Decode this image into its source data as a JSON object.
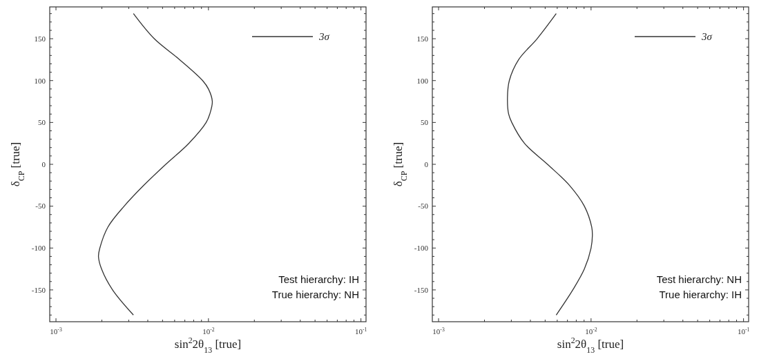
{
  "chart_data": [
    {
      "type": "line",
      "xlabel": "sin$^{2}$2θ$_{13}$ [true]",
      "ylabel": "δ$_{CP}$ [true]",
      "log": "x",
      "legend": "top right",
      "xlim": [
        0.00091,
        0.108
      ],
      "ylim": [
        -188,
        188
      ],
      "xticks": [
        {
          "value": 0.001,
          "label": "10$^{-3}$"
        },
        {
          "value": 0.002,
          "label": null
        },
        {
          "value": 0.003,
          "label": null
        },
        {
          "value": 0.004,
          "label": null
        },
        {
          "value": 0.005,
          "label": null
        },
        {
          "value": 0.006,
          "label": null
        },
        {
          "value": 0.007,
          "label": null
        },
        {
          "value": 0.008,
          "label": null
        },
        {
          "value": 0.009,
          "label": null
        },
        {
          "value": 0.01,
          "label": "10$^{-2}$"
        },
        {
          "value": 0.02,
          "label": null
        },
        {
          "value": 0.03,
          "label": null
        },
        {
          "value": 0.04,
          "label": null
        },
        {
          "value": 0.05,
          "label": null
        },
        {
          "value": 0.06,
          "label": null
        },
        {
          "value": 0.07,
          "label": null
        },
        {
          "value": 0.08,
          "label": null
        },
        {
          "value": 0.09,
          "label": null
        },
        {
          "value": 0.1,
          "label": "10$^{-1}$"
        }
      ],
      "yticks": [
        {
          "value": -180,
          "label": null
        },
        {
          "value": -170,
          "label": null
        },
        {
          "value": -160,
          "label": null
        },
        -150,
        {
          "value": -140,
          "label": null
        },
        {
          "value": -130,
          "label": null
        },
        {
          "value": -120,
          "label": null
        },
        {
          "value": -110,
          "label": null
        },
        -100,
        {
          "value": -90,
          "label": null
        },
        {
          "value": -80,
          "label": null
        },
        {
          "value": -70,
          "label": null
        },
        {
          "value": -60,
          "label": null
        },
        -50,
        {
          "value": -40,
          "label": null
        },
        {
          "value": -30,
          "label": null
        },
        {
          "value": -20,
          "label": null
        },
        {
          "value": -10,
          "label": null
        },
        0,
        {
          "value": 10,
          "label": null
        },
        {
          "value": 20,
          "label": null
        },
        {
          "value": 30,
          "label": null
        },
        {
          "value": 40,
          "label": null
        },
        50,
        {
          "value": 60,
          "label": null
        },
        {
          "value": 70,
          "label": null
        },
        {
          "value": 80,
          "label": null
        },
        {
          "value": 90,
          "label": null
        },
        100,
        {
          "value": 110,
          "label": null
        },
        {
          "value": 120,
          "label": null
        },
        {
          "value": 130,
          "label": null
        },
        {
          "value": 140,
          "label": null
        },
        150,
        {
          "value": 160,
          "label": null
        },
        {
          "value": 170,
          "label": null
        },
        {
          "value": 180,
          "label": null
        }
      ],
      "annotations": [
        "Test hierarchy: IH",
        "True hierarchy: NH"
      ],
      "series": [
        {
          "name": "3σ",
          "color": "#333333",
          "x": [
            0.00322,
            0.00441,
            0.00647,
            0.00916,
            0.01,
            0.0106,
            0.0102,
            0.00966,
            0.00743,
            0.00525,
            0.00377,
            0.0028,
            0.00219,
            0.00194,
            0.0019,
            0.00199,
            0.00235,
            0.00322
          ],
          "values": [
            180,
            150,
            125,
            100,
            90,
            75,
            60,
            50,
            25,
            0,
            -25,
            -50,
            -75,
            -100,
            -110,
            -125,
            -150,
            -180
          ]
        }
      ]
    },
    {
      "type": "line",
      "xlabel": "sin$^{2}$2θ$_{13}$ [true]",
      "ylabel": "δ$_{CP}$ [true]",
      "log": "x",
      "legend": "top right",
      "xlim": [
        0.00091,
        0.108
      ],
      "ylim": [
        -188,
        188
      ],
      "xticks": [
        {
          "value": 0.001,
          "label": "10$^{-3}$"
        },
        {
          "value": 0.002,
          "label": null
        },
        {
          "value": 0.003,
          "label": null
        },
        {
          "value": 0.004,
          "label": null
        },
        {
          "value": 0.005,
          "label": null
        },
        {
          "value": 0.006,
          "label": null
        },
        {
          "value": 0.007,
          "label": null
        },
        {
          "value": 0.008,
          "label": null
        },
        {
          "value": 0.009,
          "label": null
        },
        {
          "value": 0.01,
          "label": "10$^{-2}$"
        },
        {
          "value": 0.02,
          "label": null
        },
        {
          "value": 0.03,
          "label": null
        },
        {
          "value": 0.04,
          "label": null
        },
        {
          "value": 0.05,
          "label": null
        },
        {
          "value": 0.06,
          "label": null
        },
        {
          "value": 0.07,
          "label": null
        },
        {
          "value": 0.08,
          "label": null
        },
        {
          "value": 0.09,
          "label": null
        },
        {
          "value": 0.1,
          "label": "10$^{-1}$"
        }
      ],
      "yticks": [
        {
          "value": -180,
          "label": null
        },
        {
          "value": -170,
          "label": null
        },
        {
          "value": -160,
          "label": null
        },
        -150,
        {
          "value": -140,
          "label": null
        },
        {
          "value": -130,
          "label": null
        },
        {
          "value": -120,
          "label": null
        },
        {
          "value": -110,
          "label": null
        },
        -100,
        {
          "value": -90,
          "label": null
        },
        {
          "value": -80,
          "label": null
        },
        {
          "value": -70,
          "label": null
        },
        {
          "value": -60,
          "label": null
        },
        -50,
        {
          "value": -40,
          "label": null
        },
        {
          "value": -30,
          "label": null
        },
        {
          "value": -20,
          "label": null
        },
        {
          "value": -10,
          "label": null
        },
        0,
        {
          "value": 10,
          "label": null
        },
        {
          "value": 20,
          "label": null
        },
        {
          "value": 30,
          "label": null
        },
        {
          "value": 40,
          "label": null
        },
        50,
        {
          "value": 60,
          "label": null
        },
        {
          "value": 70,
          "label": null
        },
        {
          "value": 80,
          "label": null
        },
        {
          "value": 90,
          "label": null
        },
        100,
        {
          "value": 110,
          "label": null
        },
        {
          "value": 120,
          "label": null
        },
        {
          "value": 130,
          "label": null
        },
        {
          "value": 140,
          "label": null
        },
        150,
        {
          "value": 160,
          "label": null
        },
        {
          "value": 170,
          "label": null
        },
        {
          "value": 180,
          "label": null
        }
      ],
      "annotations": [
        "Test hierarchy: NH",
        "True hierarchy: IH"
      ],
      "series": [
        {
          "name": "3σ",
          "color": "#333333",
          "x": [
            0.00591,
            0.00443,
            0.00335,
            0.00291,
            0.00283,
            0.00288,
            0.00302,
            0.00366,
            0.00518,
            0.00721,
            0.00904,
            0.0101,
            0.0102,
            0.01,
            0.00904,
            0.00759,
            0.00591
          ],
          "values": [
            180,
            150,
            125,
            100,
            80,
            60,
            50,
            25,
            0,
            -25,
            -50,
            -75,
            -85,
            -100,
            -125,
            -150,
            -180
          ]
        }
      ]
    }
  ]
}
